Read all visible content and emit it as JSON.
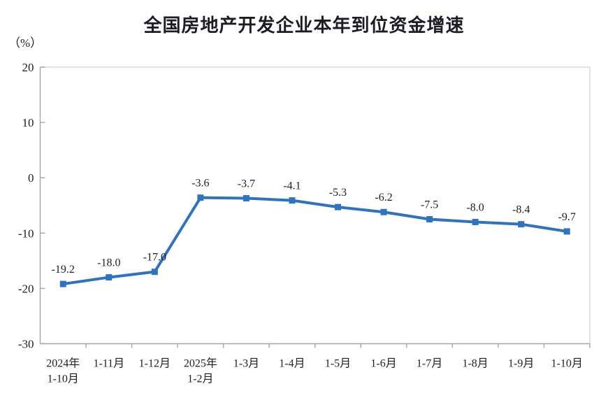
{
  "title": "全国房地产开发企业本年到位资金增速",
  "unit_label": "（%）",
  "chart_data": {
    "type": "line",
    "title": "全国房地产开发企业本年到位资金增速",
    "ylabel": "（%）",
    "categories": [
      "2024年\n1-10月",
      "1-11月",
      "1-12月",
      "2025年\n1-2月",
      "1-3月",
      "1-4月",
      "1-5月",
      "1-6月",
      "1-7月",
      "1-8月",
      "1-9月",
      "1-10月"
    ],
    "values": [
      -19.2,
      -18.0,
      -17.0,
      -3.6,
      -3.7,
      -4.1,
      -5.3,
      -6.2,
      -7.5,
      -8.0,
      -8.4,
      -9.7
    ],
    "point_labels": [
      "-19.2",
      "-18.0",
      "-17.0",
      "-3.6",
      "-3.7",
      "-4.1",
      "-5.3",
      "-6.2",
      "-7.5",
      "-8.0",
      "-8.4",
      "-9.7"
    ],
    "ylim": [
      -30,
      20
    ],
    "yticks": [
      20,
      10,
      0,
      -10,
      -20,
      -30
    ],
    "grid": false,
    "legend": null,
    "marker": "square",
    "line_color": "#2e73c0",
    "text_color": "#1f1f1f",
    "axis_color": "#a6a6a6",
    "border_color": "#d9d9d9"
  }
}
